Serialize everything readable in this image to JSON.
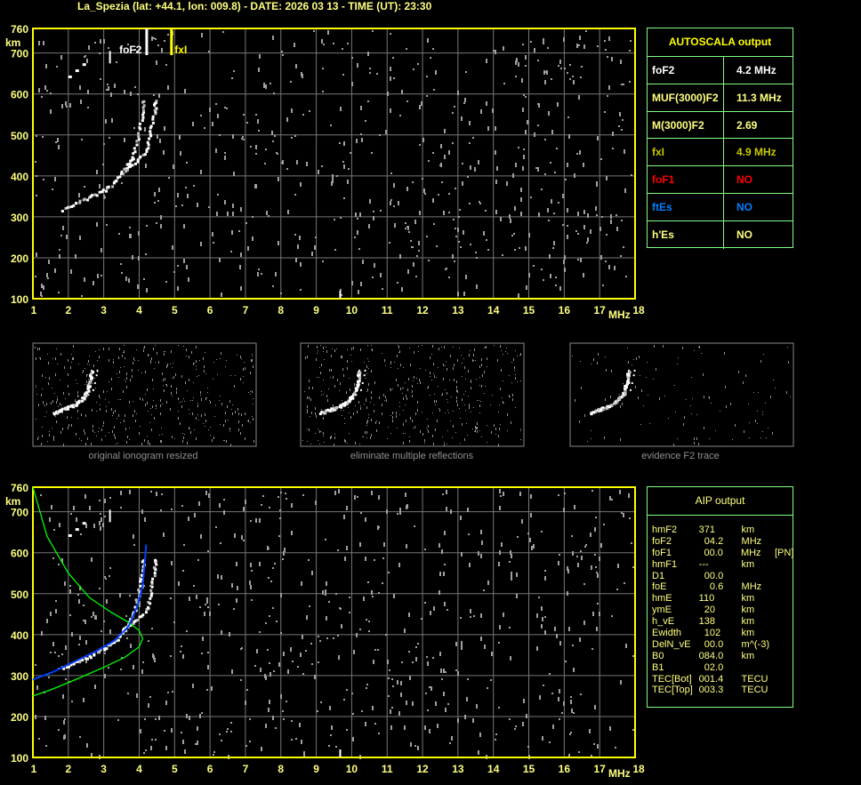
{
  "title": "La_Spezia (lat: +44.1, lon: 009.8) - DATE: 2026 03 13 - TIME (UT): 23:30",
  "chart_data": [
    {
      "type": "scatter",
      "name_hint": "ionogram",
      "xlabel": "MHz",
      "ylabel": "km",
      "xlim": [
        1,
        18
      ],
      "ylim": [
        100,
        760
      ],
      "x_ticks": [
        "1",
        "2",
        "3",
        "4",
        "5",
        "6",
        "7",
        "8",
        "9",
        "10",
        "11",
        "12",
        "13",
        "14",
        "15",
        "16",
        "17",
        "18"
      ],
      "y_ticks": [
        "760",
        "700",
        "600",
        "500",
        "400",
        "300",
        "200",
        "100"
      ],
      "grid": true,
      "markers": [
        {
          "label": "foF2",
          "freq": 4.2,
          "color": "#ffffff"
        },
        {
          "label": "fxI",
          "freq": 4.9,
          "color": "#ffff00"
        }
      ],
      "traces": {
        "o_mode": [
          [
            1.8,
            320
          ],
          [
            2.2,
            335
          ],
          [
            2.6,
            350
          ],
          [
            3.0,
            368
          ],
          [
            3.3,
            388
          ],
          [
            3.6,
            418
          ],
          [
            3.8,
            450
          ],
          [
            3.95,
            500
          ],
          [
            4.05,
            550
          ],
          [
            4.1,
            590
          ]
        ],
        "x_mode": [
          [
            3.5,
            415
          ],
          [
            3.9,
            435
          ],
          [
            4.2,
            465
          ],
          [
            4.3,
            510
          ],
          [
            4.4,
            560
          ],
          [
            4.45,
            590
          ]
        ]
      }
    },
    {
      "type": "line",
      "xlabel": "MHz",
      "ylabel": "km",
      "xlim": [
        1,
        18
      ],
      "ylim": [
        100,
        760
      ],
      "x_ticks": [
        "1",
        "2",
        "3",
        "4",
        "5",
        "6",
        "7",
        "8",
        "9",
        "10",
        "11",
        "12",
        "13",
        "14",
        "15",
        "16",
        "17",
        "18"
      ],
      "y_ticks": [
        "760",
        "700",
        "600",
        "500",
        "400",
        "300",
        "200",
        "100"
      ],
      "grid": true,
      "series": [
        {
          "color": "#00ff00",
          "points": [
            [
              1,
              760
            ],
            [
              1.4,
              640
            ],
            [
              2,
              550
            ],
            [
              2.6,
              490
            ],
            [
              3.2,
              455
            ],
            [
              3.7,
              430
            ],
            [
              4.0,
              410
            ],
            [
              4.1,
              390
            ],
            [
              4.0,
              370
            ],
            [
              3.6,
              345
            ],
            [
              3.0,
              320
            ],
            [
              2.2,
              290
            ],
            [
              1.5,
              265
            ],
            [
              1,
              250
            ]
          ]
        },
        {
          "color": "#0040ff",
          "points": [
            [
              1,
              290
            ],
            [
              1.6,
              310
            ],
            [
              2.2,
              335
            ],
            [
              2.8,
              360
            ],
            [
              3.3,
              385
            ],
            [
              3.7,
              420
            ],
            [
              3.95,
              470
            ],
            [
              4.1,
              520
            ],
            [
              4.2,
              620
            ]
          ]
        }
      ]
    }
  ],
  "autoscala": {
    "title": "AUTOSCALA output",
    "rows": [
      {
        "key": "foF2",
        "value": "4.2 MHz",
        "color": "#ffffff"
      },
      {
        "key": "MUF(3000)F2",
        "value": "11.3 MHz",
        "color": "#ffff80"
      },
      {
        "key": "M(3000)F2",
        "value": "2.69",
        "color": "#ffff80"
      },
      {
        "key": "fxI",
        "value": "4.9 MHz",
        "color": "#c8c800"
      },
      {
        "key": "foF1",
        "value": "NO",
        "color": "#ff0000"
      },
      {
        "key": "ftEs",
        "value": "NO",
        "color": "#0080ff"
      },
      {
        "key": "h'Es",
        "value": "NO",
        "color": "#ffff80"
      }
    ]
  },
  "panels": [
    {
      "caption": "original ionogram resized"
    },
    {
      "caption": "eliminate multiple reflections"
    },
    {
      "caption": "evidence F2 trace"
    }
  ],
  "aip": {
    "title": "AIP output",
    "rows": [
      {
        "key": "hmF2",
        "value": "371",
        "unit": "km",
        "extra": ""
      },
      {
        "key": "foF2",
        "value": "  04.2",
        "unit": "MHz",
        "extra": ""
      },
      {
        "key": "foF1",
        "value": "  00.0",
        "unit": "MHz",
        "extra": "[PN]"
      },
      {
        "key": "hmF1",
        "value": "---",
        "unit": "km",
        "extra": ""
      },
      {
        "key": "D1",
        "value": "  00.0",
        "unit": "",
        "extra": ""
      },
      {
        "key": "foE",
        "value": "    0.6",
        "unit": "MHz",
        "extra": ""
      },
      {
        "key": "hmE",
        "value": "110",
        "unit": "km",
        "extra": ""
      },
      {
        "key": "ymE",
        "value": "  20",
        "unit": "km",
        "extra": ""
      },
      {
        "key": "h_vE",
        "value": "138",
        "unit": "km",
        "extra": ""
      },
      {
        "key": "Ewidth",
        "value": "  102",
        "unit": "km",
        "extra": ""
      },
      {
        "key": "DelN_vE",
        "value": "  00.0",
        "unit": "m^(-3)",
        "extra": ""
      },
      {
        "key": "B0",
        "value": "084.0",
        "unit": "km",
        "extra": ""
      },
      {
        "key": "B1",
        "value": "  02.0",
        "unit": "",
        "extra": ""
      },
      {
        "key": "TEC[Bot]",
        "value": "001.4",
        "unit": "TECU",
        "extra": ""
      },
      {
        "key": "TEC[Top]",
        "value": "003.3",
        "unit": "TECU",
        "extra": ""
      }
    ]
  }
}
